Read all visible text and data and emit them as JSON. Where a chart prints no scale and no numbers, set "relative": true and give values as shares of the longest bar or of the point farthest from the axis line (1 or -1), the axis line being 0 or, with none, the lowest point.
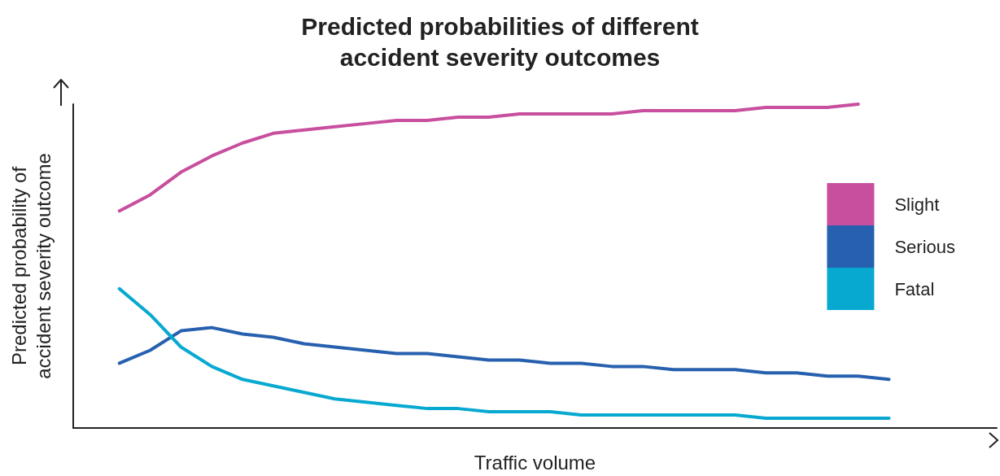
{
  "chart_data": {
    "type": "line",
    "title": "Predicted probabilities of different\naccident severity outcomes",
    "xlabel": "Traffic volume",
    "ylabel": "Predicted probability of\naccident severity outcome",
    "relative": true,
    "legend": "right",
    "grid": false,
    "marker": "none",
    "line_style": "solid",
    "categories": [
      null,
      null,
      null,
      null,
      null,
      null,
      null,
      null,
      null,
      null,
      null,
      null,
      null,
      null,
      null,
      null,
      null,
      null,
      null,
      null,
      null,
      null,
      null,
      null,
      null,
      null,
      null,
      null,
      null,
      null
    ],
    "series": [
      {
        "name": "Slight",
        "color": "#c84e9e",
        "values": [
          null,
          0.67,
          0.72,
          0.79,
          0.84,
          0.88,
          0.91,
          0.92,
          0.93,
          0.94,
          0.95,
          0.95,
          0.96,
          0.96,
          0.97,
          0.97,
          0.97,
          0.97,
          0.98,
          0.98,
          0.98,
          0.98,
          0.99,
          0.99,
          0.99,
          1,
          null,
          null,
          null,
          null
        ]
      },
      {
        "name": "Serious",
        "color": "#2660ae",
        "values": [
          null,
          0.2,
          0.24,
          0.3,
          0.31,
          0.29,
          0.28,
          0.26,
          0.25,
          0.24,
          0.23,
          0.23,
          0.22,
          0.21,
          0.21,
          0.2,
          0.2,
          0.19,
          0.19,
          0.18,
          0.18,
          0.18,
          0.17,
          0.17,
          0.16,
          0.16,
          0.15,
          null,
          null,
          null
        ]
      },
      {
        "name": "Fatal",
        "color": "#08a9d1",
        "values": [
          null,
          0.43,
          0.35,
          0.25,
          0.19,
          0.15,
          0.13,
          0.11,
          0.09,
          0.08,
          0.07,
          0.06,
          0.06,
          0.05,
          0.05,
          0.05,
          0.04,
          0.04,
          0.04,
          0.04,
          0.04,
          0.04,
          0.03,
          0.03,
          0.03,
          0.03,
          0.03,
          null,
          null,
          null
        ]
      }
    ]
  }
}
